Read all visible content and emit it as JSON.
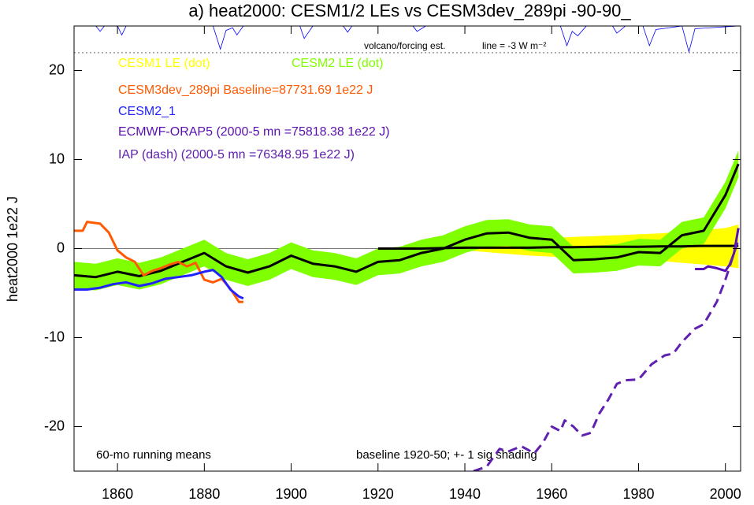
{
  "chart_data": {
    "type": "line",
    "title": "a) heat2000: CESM1/2 LEs vs CESM3dev_289pi -90-90_",
    "y_label": "heat2000 1e22 J",
    "annotations": [
      "60-mo running means",
      "baseline 1920-50; +- 1 sig shading",
      "volcano/forcing est.",
      "line = -3 W m⁻²"
    ],
    "xlim": [
      1850,
      2003.5
    ],
    "ylim": [
      -25,
      25
    ],
    "xticks": [
      1860,
      1880,
      1900,
      1920,
      1940,
      1960,
      1980,
      2000
    ],
    "yticks": [
      -20,
      -10,
      0,
      10,
      20
    ],
    "series": [
      {
        "name": "CESM1 LE (dot)",
        "color": "#ffff00",
        "line_color": "#000000",
        "x": [
          1920,
          1925,
          1930,
          1935,
          1940,
          1945,
          1950,
          1955,
          1960,
          1965,
          1970,
          1975,
          1980,
          1985,
          1990,
          1995,
          2000,
          2003
        ],
        "values": [
          0,
          0,
          0,
          0.05,
          0.1,
          0.1,
          0.1,
          0.1,
          0.15,
          0.15,
          0.2,
          0.2,
          0.2,
          0.25,
          0.25,
          0.3,
          0.3,
          0.3
        ],
        "lower": [
          0,
          -0.05,
          -0.1,
          -0.2,
          -0.2,
          -0.4,
          -0.6,
          -0.8,
          -0.9,
          -1.0,
          -1.1,
          -1.2,
          -1.3,
          -1.4,
          -1.6,
          -1.8,
          -2.0,
          -2.2
        ],
        "upper": [
          0,
          0.05,
          0.1,
          0.3,
          0.4,
          0.6,
          0.8,
          1.0,
          1.2,
          1.3,
          1.4,
          1.5,
          1.6,
          1.7,
          1.9,
          2.1,
          2.3,
          2.7
        ]
      },
      {
        "name": "CESM2 LE (dot)",
        "color": "#80ff00",
        "line_color": "#000000",
        "x": [
          1850,
          1855,
          1860,
          1865,
          1870,
          1875,
          1880,
          1885,
          1890,
          1895,
          1900,
          1905,
          1910,
          1915,
          1920,
          1925,
          1930,
          1935,
          1940,
          1945,
          1950,
          1955,
          1960,
          1965,
          1970,
          1975,
          1980,
          1985,
          1990,
          1995,
          2000,
          2003
        ],
        "values": [
          -3.0,
          -3.2,
          -2.6,
          -3.1,
          -2.5,
          -1.5,
          -0.5,
          -2.0,
          -2.7,
          -2.0,
          -0.8,
          -1.7,
          -2.0,
          -2.6,
          -1.5,
          -1.3,
          -0.5,
          0.0,
          1.0,
          1.7,
          1.8,
          1.2,
          1.0,
          -1.3,
          -1.2,
          -1.0,
          -0.4,
          -0.5,
          1.5,
          2.0,
          6.0,
          9.5
        ],
        "lower": [
          -4.5,
          -4.7,
          -4.1,
          -4.6,
          -4.0,
          -3.0,
          -2.0,
          -3.5,
          -4.2,
          -3.5,
          -2.3,
          -3.2,
          -3.5,
          -4.1,
          -3.0,
          -2.8,
          -2.0,
          -1.5,
          -0.5,
          0.2,
          0.3,
          -0.3,
          -0.5,
          -2.8,
          -2.7,
          -2.5,
          -1.9,
          -2.0,
          0.0,
          0.5,
          4.5,
          8.0
        ],
        "upper": [
          -1.5,
          -1.7,
          -1.1,
          -1.6,
          -1.0,
          0.0,
          1.0,
          -0.5,
          -1.2,
          -0.5,
          0.7,
          -0.2,
          -0.5,
          -1.1,
          0.0,
          0.2,
          1.0,
          1.5,
          2.5,
          3.2,
          3.3,
          2.7,
          2.5,
          0.2,
          0.3,
          0.5,
          1.1,
          1.0,
          3.0,
          3.5,
          7.5,
          11.0
        ]
      },
      {
        "name": "CESM3dev_289pi Baseline=87731.69 1e22 J",
        "color": "#ff5a00",
        "x": [
          1850,
          1852,
          1853,
          1856,
          1858,
          1860,
          1862,
          1864,
          1866,
          1868,
          1870,
          1872,
          1874,
          1876,
          1878,
          1880,
          1882,
          1884,
          1886,
          1888,
          1889
        ],
        "values": [
          2,
          2,
          3.0,
          2.8,
          1.8,
          -0.2,
          -1.0,
          -1.5,
          -3.0,
          -2.5,
          -2.2,
          -1.8,
          -1.5,
          -2.0,
          -1.6,
          -3.5,
          -3.8,
          -3.4,
          -4.5,
          -6.0,
          -6.0
        ]
      },
      {
        "name": "CESM2_1",
        "color": "#2222ff",
        "x": [
          1850,
          1853,
          1856,
          1859,
          1862,
          1865,
          1868,
          1871,
          1874,
          1877,
          1880,
          1882,
          1884,
          1886,
          1888,
          1889
        ],
        "values": [
          -4.6,
          -4.6,
          -4.4,
          -4.0,
          -3.8,
          -4.2,
          -3.9,
          -3.4,
          -3.2,
          -3.0,
          -2.6,
          -2.4,
          -3.2,
          -4.6,
          -5.4,
          -5.6
        ]
      },
      {
        "name": "ECMWF-ORAP5 (2000-5 mn =75818.38 1e22 J)",
        "color": "#5a10b0",
        "x": [
          1993,
          1995,
          1996,
          1998,
          2000,
          2001,
          2002,
          2003
        ],
        "values": [
          -2.3,
          -2.3,
          -2.0,
          -2.2,
          -2.5,
          -1.8,
          -0.5,
          2.3
        ]
      },
      {
        "name": "IAP (dash) (2000-5 mn =76348.95 1e22 J)",
        "color": "#6020b0",
        "dash": true,
        "x": [
          1942,
          1945,
          1948,
          1950,
          1953,
          1956,
          1958,
          1960,
          1962,
          1963,
          1965,
          1967,
          1969,
          1971,
          1973,
          1975,
          1977,
          1980,
          1983,
          1986,
          1988,
          1990,
          1993,
          1995,
          1998,
          2000,
          2002,
          2003
        ],
        "values": [
          -25,
          -24.5,
          -22.5,
          -22.8,
          -22.2,
          -23,
          -21.8,
          -20.0,
          -20.5,
          -19.3,
          -20.0,
          -21.0,
          -20.7,
          -18.5,
          -17.0,
          -15.2,
          -14.8,
          -14.7,
          -13.0,
          -12.0,
          -11.8,
          -10.5,
          -9.0,
          -8.5,
          -6.0,
          -3.5,
          -0.5,
          1.0
        ]
      }
    ],
    "forcing": {
      "color": "#0000ff",
      "reference": 22,
      "x": [
        1850,
        1855,
        1856,
        1857,
        1860,
        1861,
        1862,
        1882,
        1883.7,
        1885,
        1886.5,
        1887.5,
        1889,
        1902,
        1903,
        1905,
        1912,
        1913,
        1914,
        1928,
        1929,
        1931,
        1962,
        1963.5,
        1964.7,
        1966,
        1968,
        1974,
        1975,
        1977,
        1981,
        1982.5,
        1984,
        1990,
        1991.6,
        1993,
        2003
      ],
      "values": [
        25,
        25,
        24.4,
        25,
        25,
        24.0,
        25,
        25,
        22.4,
        24.5,
        24.8,
        24.0,
        25,
        25,
        23.6,
        25,
        25,
        24.3,
        25,
        25,
        24.4,
        25,
        25,
        22.8,
        24.4,
        23.9,
        25,
        25,
        24.2,
        25,
        25,
        22.8,
        24.6,
        25,
        22.1,
        24.7,
        25
      ]
    }
  }
}
